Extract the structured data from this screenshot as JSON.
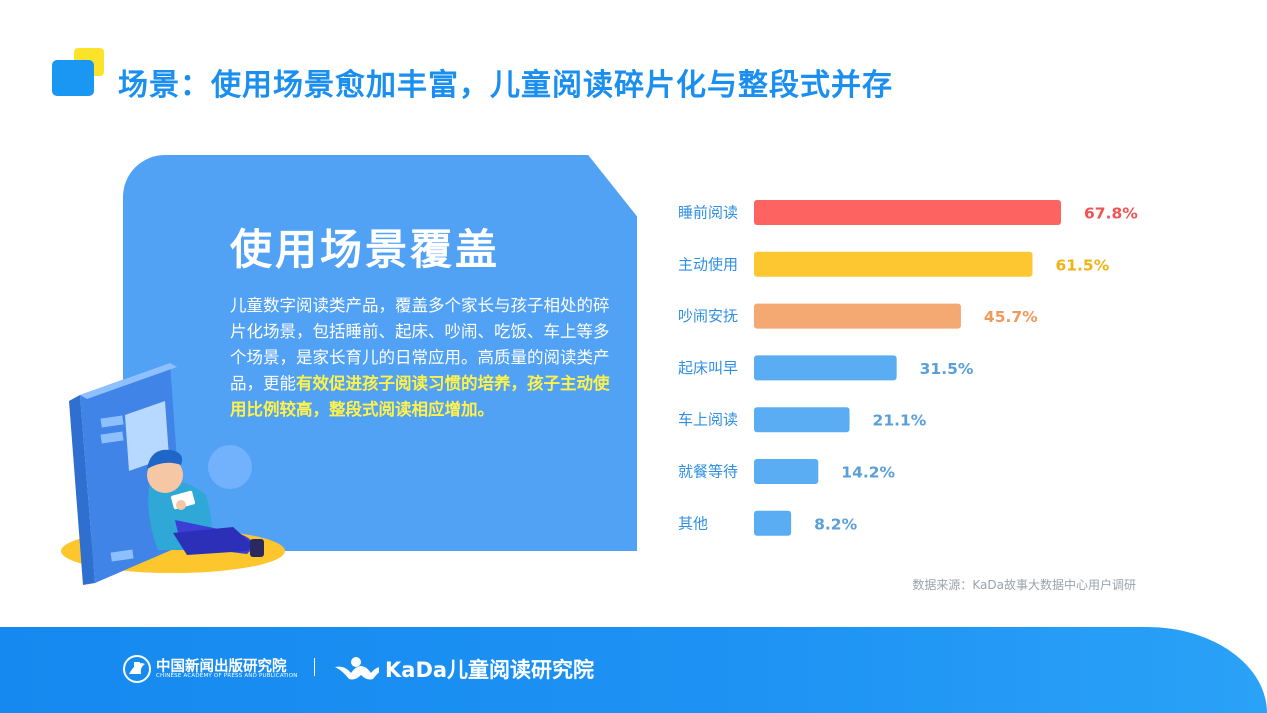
{
  "header": {
    "title": "场景：使用场景愈加丰富，儿童阅读碎片化与整段式并存"
  },
  "card": {
    "title": "使用场景覆盖",
    "body_plain": "儿童数字阅读类产品，覆盖多个家长与孩子相处的碎片化场景，包括睡前、起床、吵闹、吃饭、车上等多个场景，是家长育儿的日常应用。高质量的阅读类产品，更能",
    "body_highlight": "有效促进孩子阅读习惯的培养，孩子主动使用比例较高，整段式阅读相应增加。"
  },
  "chart_data": {
    "type": "bar",
    "orientation": "horizontal",
    "categories": [
      "睡前阅读",
      "主动使用",
      "吵闹安抚",
      "起床叫早",
      "车上阅读",
      "就餐等待",
      "其他"
    ],
    "values": [
      67.8,
      61.5,
      45.7,
      31.5,
      21.1,
      14.2,
      8.2
    ],
    "value_labels": [
      "67.8%",
      "61.5%",
      "45.7%",
      "31.5%",
      "21.1%",
      "14.2%",
      "8.2%"
    ],
    "bar_colors": [
      "#fd6360",
      "#fcc730",
      "#f4a872",
      "#5aadf3",
      "#5aadf3",
      "#5aadf3",
      "#5aadf3"
    ],
    "label_colors": [
      "#f05454",
      "#f2b312",
      "#ee9a5c",
      "#5a9fd8",
      "#5a9fd8",
      "#5a9fd8",
      "#5a9fd8"
    ],
    "xlim": [
      0,
      100
    ],
    "grid": false,
    "legend": "none"
  },
  "source": "数据来源：KaDa故事大数据中心用户调研",
  "footer": {
    "org1_cn": "中国新闻出版研究院",
    "org1_en": "CHINESE ACADEMY OF PRESS AND PUBLICATION",
    "separator": "|",
    "org2": "KaDa儿童阅读研究院"
  },
  "icons": [
    "header-squares-icon",
    "reading-child-illustration",
    "book-illustration",
    "press-academy-logo-icon",
    "kada-logo-icon"
  ]
}
